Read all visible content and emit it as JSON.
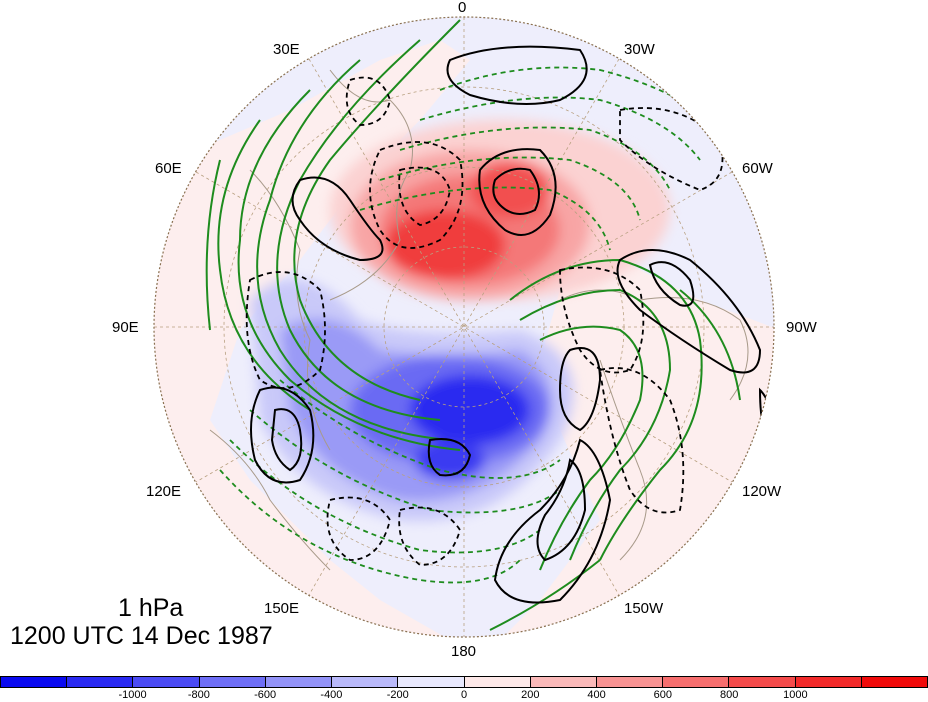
{
  "map": {
    "level_label": "1 hPa",
    "time_label": "1200 UTC 14 Dec 1987",
    "longitude_labels": {
      "lon_0": "0",
      "lon_30w": "30W",
      "lon_60w": "60W",
      "lon_90w": "90W",
      "lon_120w": "120W",
      "lon_150w": "150W",
      "lon_180": "180",
      "lon_150e": "150E",
      "lon_120e": "120E",
      "lon_90e": "90E",
      "lon_60e": "60E",
      "lon_30e": "30E"
    },
    "projection": "north polar stereographic",
    "contours": {
      "black_solid": "positive anomaly",
      "black_dashed": "negative anomaly",
      "green_solid": "positive",
      "green_dashed": "negative"
    },
    "colors": {
      "ocean_bg": "#eeeefc",
      "land": "#fdeeee",
      "coast": "#a89a8a",
      "graticule": "#b8a080",
      "green_contour": "#1e8c1e",
      "black_contour": "#000000"
    }
  },
  "colorbar": {
    "ticks": [
      "-1000",
      "-800",
      "-600",
      "-400",
      "-200",
      "0",
      "200",
      "400",
      "600",
      "800",
      "1000"
    ],
    "colors": [
      "#0a0af0",
      "#2a2af2",
      "#4b4bf4",
      "#6e6ef6",
      "#9393f8",
      "#b9b9fa",
      "#e8e8fd",
      "#fde8e8",
      "#fab9b9",
      "#f89393",
      "#f66e6e",
      "#f44b4b",
      "#f22a2a",
      "#f00a0a"
    ]
  }
}
